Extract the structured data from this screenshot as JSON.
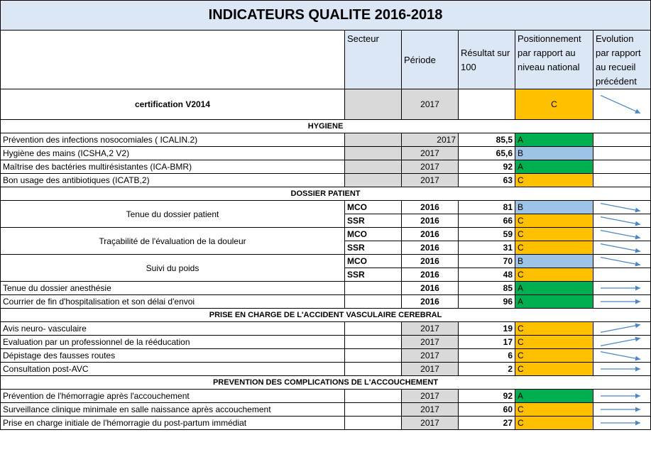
{
  "title": "INDICATEURS QUALITE 2016-2018",
  "headers": {
    "secteur": "Secteur",
    "periode": "Période",
    "resultat": "Résultat sur 100",
    "positionnement": "Positionnement par rapport au niveau national",
    "evolution": "Evolution par rapport au recueil précédent"
  },
  "certification": {
    "label": "certification V2014",
    "periode": "2017",
    "position": "C",
    "evolution": "down"
  },
  "sections": {
    "hygiene": "HYGIENE",
    "dossier": "DOSSIER PATIENT",
    "avc": "PRISE EN CHARGE DE L'ACCIDENT VASCULAIRE CEREBRAL",
    "accouchement": "PREVENTION DES COMPLICATIONS DE L'ACCOUCHEMENT"
  },
  "rows": [
    {
      "label": "Prévention des infections  nosocomiales ( ICALIN.2)",
      "secteur": "",
      "periode": "2017",
      "resultat": "85,5",
      "position": "A",
      "evolution": ""
    },
    {
      "label": "Hygiène des mains (ICSHA,2 V2)",
      "secteur": "",
      "periode": "2017",
      "resultat": "65,6",
      "position": "B",
      "evolution": ""
    },
    {
      "label": "Maîtrise des bactéries multirésistantes (ICA-BMR)",
      "secteur": "",
      "periode": "2017",
      "resultat": "92",
      "position": "A",
      "evolution": ""
    },
    {
      "label": "Bon usage des antibiotiques (ICATB,2)",
      "secteur": "",
      "periode": "2017",
      "resultat": "63",
      "position": "C",
      "evolution": ""
    },
    {
      "label": "Tenue du dossier patient",
      "secteur": "MCO",
      "periode": "2016",
      "resultat": "81",
      "position": "B",
      "evolution": "down"
    },
    {
      "label": "",
      "secteur": "SSR",
      "periode": "2016",
      "resultat": "66",
      "position": "C",
      "evolution": "down"
    },
    {
      "label": "Traçabilité de l'évaluation de la douleur",
      "secteur": "MCO",
      "periode": "2016",
      "resultat": "59",
      "position": "C",
      "evolution": "down"
    },
    {
      "label": "",
      "secteur": "SSR",
      "periode": "2016",
      "resultat": "31",
      "position": "C",
      "evolution": "down"
    },
    {
      "label": "Suivi du poids",
      "secteur": "MCO",
      "periode": "2016",
      "resultat": "70",
      "position": "B",
      "evolution": "down"
    },
    {
      "label": "",
      "secteur": "SSR",
      "periode": "2016",
      "resultat": "48",
      "position": "C",
      "evolution": ""
    },
    {
      "label": "Tenue du dossier anesthésie",
      "secteur": "",
      "periode": "2016",
      "resultat": "85",
      "position": "A",
      "evolution": "right"
    },
    {
      "label": "Courrier de fin d'hospitalisation et son délai d'envoi",
      "secteur": "",
      "periode": "2016",
      "resultat": "96",
      "position": "A",
      "evolution": "right"
    },
    {
      "label": "Avis neuro- vasculaire",
      "secteur": "",
      "periode": "2017",
      "resultat": "19",
      "position": "C",
      "evolution": "up"
    },
    {
      "label": "Evaluation par un professionnel de la rééducation",
      "secteur": "",
      "periode": "2017",
      "resultat": "17",
      "position": "C",
      "evolution": "up"
    },
    {
      "label": "Dépistage des fausses routes",
      "secteur": "",
      "periode": "2017",
      "resultat": "6",
      "position": "C",
      "evolution": "down"
    },
    {
      "label": "Consultation post-AVC",
      "secteur": "",
      "periode": "2017",
      "resultat": "2",
      "position": "C",
      "evolution": "right"
    },
    {
      "label": "Prévention de l'hémorragie après l'accouchement",
      "secteur": "",
      "periode": "2017",
      "resultat": "92",
      "position": "A",
      "evolution": "right"
    },
    {
      "label": "Surveillance clinique minimale en salle naissance après accouchement",
      "secteur": "",
      "periode": "2017",
      "resultat": "60",
      "position": "C",
      "evolution": "right"
    },
    {
      "label": "Prise en charge initiale de l'hémorragie du post-partum immédiat",
      "secteur": "",
      "periode": "2017",
      "resultat": "27",
      "position": "C",
      "evolution": "right"
    }
  ]
}
